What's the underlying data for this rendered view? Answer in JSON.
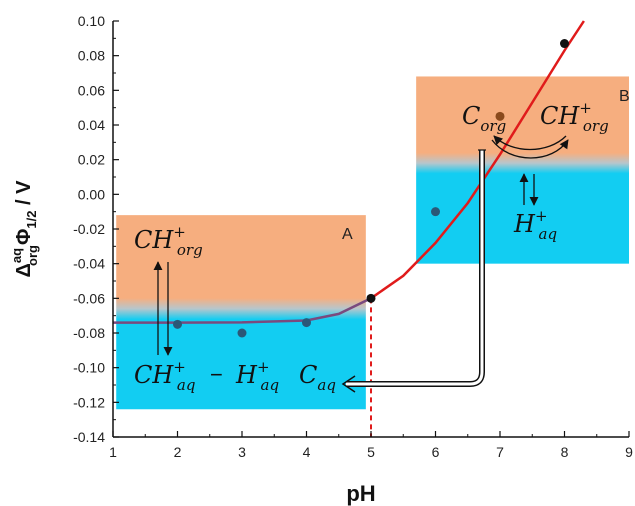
{
  "chart_data": {
    "type": "scatter",
    "xlabel": "pH",
    "ylabel": {
      "base": "Δ",
      "sup": "aq",
      "sub": "org",
      "phi": "Φ",
      "phi_sub": "1/2",
      "unit": " / V"
    },
    "xlim": [
      1,
      9
    ],
    "ylim": [
      -0.14,
      0.1
    ],
    "x_ticks": [
      "1",
      "2",
      "3",
      "4",
      "5",
      "6",
      "7",
      "8",
      "9"
    ],
    "y_ticks": [
      "-0.14",
      "-0.12",
      "-0.10",
      "-0.08",
      "-0.06",
      "-0.04",
      "-0.02",
      "0.00",
      "0.02",
      "0.04",
      "0.06",
      "0.08",
      "0.10"
    ],
    "grid": false,
    "points": [
      {
        "x": 2,
        "y": -0.075,
        "color": "#2b5878"
      },
      {
        "x": 3,
        "y": -0.08,
        "color": "#2b5878"
      },
      {
        "x": 4,
        "y": -0.074,
        "color": "#2b5878"
      },
      {
        "x": 5,
        "y": -0.06,
        "color": "#111111"
      },
      {
        "x": 6,
        "y": -0.01,
        "color": "#2b5878"
      },
      {
        "x": 7,
        "y": 0.045,
        "color": "#8a4a1c"
      },
      {
        "x": 8,
        "y": 0.087,
        "color": "#111111"
      }
    ],
    "fit_curve": [
      {
        "x": 1,
        "y": -0.074
      },
      {
        "x": 2,
        "y": -0.074
      },
      {
        "x": 3,
        "y": -0.0739
      },
      {
        "x": 4,
        "y": -0.0728
      },
      {
        "x": 4.5,
        "y": -0.069
      },
      {
        "x": 5,
        "y": -0.06
      },
      {
        "x": 5.5,
        "y": -0.047
      },
      {
        "x": 6,
        "y": -0.028
      },
      {
        "x": 6.5,
        "y": -0.005
      },
      {
        "x": 7,
        "y": 0.023
      },
      {
        "x": 7.5,
        "y": 0.053
      },
      {
        "x": 8,
        "y": 0.083
      },
      {
        "x": 8.3,
        "y": 0.1
      }
    ],
    "fit_color": "#e01b1b",
    "fit_color_low": "#7a4a7e",
    "guide_line": {
      "x": 5,
      "color": "#e01b1b"
    },
    "regions": [
      {
        "label": "A",
        "x_range": [
          1.05,
          4.92
        ],
        "top": -0.012,
        "interface": -0.066,
        "bottom": -0.124
      },
      {
        "label": "B",
        "x_range": [
          5.7,
          9.0
        ],
        "top": 0.068,
        "interface": 0.018,
        "bottom": -0.04
      }
    ],
    "colors": {
      "organic": "#f6ae7f",
      "aqueous": "#12cdf2",
      "interface": "#b7c6cc"
    },
    "annotations": {
      "a_top": {
        "base": "CH",
        "sup": "+",
        "sub": "org"
      },
      "a_bottom_left": {
        "base": "CH",
        "sup": "+",
        "sub": "aq"
      },
      "a_minus": "−",
      "a_bottom_right": {
        "base": "H",
        "sup": "+",
        "sub": "aq"
      },
      "c_aq": {
        "base": "C",
        "sub": "aq"
      },
      "b_left": {
        "base": "C",
        "sub": "org"
      },
      "b_right": {
        "base": "CH",
        "sup": "+",
        "sub": "org"
      },
      "b_bottom": {
        "base": "H",
        "sup": "+",
        "sub": "aq"
      }
    }
  }
}
